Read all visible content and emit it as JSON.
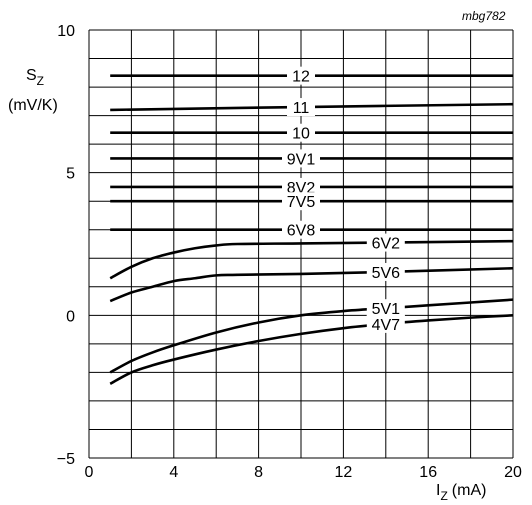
{
  "chart_data": {
    "type": "line",
    "reference": "mbg782",
    "ylabel": "S",
    "ylabel_sub": "Z",
    "yunit": "(mV/K)",
    "xlabel": "I",
    "xlabel_sub": "Z",
    "xunit": "(mA)",
    "xlim": [
      0,
      20
    ],
    "ylim": [
      -5,
      10
    ],
    "x_minor_step": 2,
    "y_minor_step": 1,
    "xticks": [
      0,
      4,
      8,
      12,
      16,
      20
    ],
    "yticks": [
      -5,
      0,
      5,
      10
    ],
    "grid": true,
    "series": [
      {
        "name": "12",
        "label_x": 10,
        "points": [
          [
            1,
            8.4
          ],
          [
            20,
            8.4
          ]
        ]
      },
      {
        "name": "11",
        "label_x": 10,
        "points": [
          [
            1,
            7.2
          ],
          [
            10,
            7.3
          ],
          [
            20,
            7.4
          ]
        ]
      },
      {
        "name": "10",
        "label_x": 10,
        "points": [
          [
            1,
            6.4
          ],
          [
            20,
            6.4
          ]
        ]
      },
      {
        "name": "9V1",
        "label_x": 10,
        "points": [
          [
            1,
            5.5
          ],
          [
            20,
            5.5
          ]
        ]
      },
      {
        "name": "8V2",
        "label_x": 10,
        "points": [
          [
            1,
            4.5
          ],
          [
            20,
            4.5
          ]
        ]
      },
      {
        "name": "7V5",
        "label_x": 10,
        "points": [
          [
            1,
            4.0
          ],
          [
            20,
            4.0
          ]
        ]
      },
      {
        "name": "6V8",
        "label_x": 10,
        "points": [
          [
            1,
            3.0
          ],
          [
            20,
            3.0
          ]
        ]
      },
      {
        "name": "6V2",
        "label_x": 14,
        "points": [
          [
            1,
            1.3
          ],
          [
            2,
            1.7
          ],
          [
            3,
            2.0
          ],
          [
            4,
            2.2
          ],
          [
            5,
            2.35
          ],
          [
            6,
            2.45
          ],
          [
            7,
            2.5
          ],
          [
            10,
            2.52
          ],
          [
            14,
            2.55
          ],
          [
            20,
            2.6
          ]
        ]
      },
      {
        "name": "5V6",
        "label_x": 14,
        "points": [
          [
            1,
            0.5
          ],
          [
            2,
            0.8
          ],
          [
            3,
            1.0
          ],
          [
            4,
            1.2
          ],
          [
            5,
            1.3
          ],
          [
            6,
            1.4
          ],
          [
            7,
            1.42
          ],
          [
            10,
            1.45
          ],
          [
            14,
            1.52
          ],
          [
            20,
            1.65
          ]
        ]
      },
      {
        "name": "5V1",
        "label_x": 14,
        "points": [
          [
            1,
            -2.0
          ],
          [
            2,
            -1.6
          ],
          [
            3,
            -1.3
          ],
          [
            4,
            -1.05
          ],
          [
            6,
            -0.6
          ],
          [
            8,
            -0.25
          ],
          [
            10,
            0.0
          ],
          [
            12,
            0.15
          ],
          [
            14,
            0.25
          ],
          [
            16,
            0.35
          ],
          [
            18,
            0.45
          ],
          [
            20,
            0.55
          ]
        ]
      },
      {
        "name": "4V7",
        "label_x": 14,
        "points": [
          [
            1,
            -2.4
          ],
          [
            2,
            -2.0
          ],
          [
            3,
            -1.75
          ],
          [
            4,
            -1.55
          ],
          [
            6,
            -1.2
          ],
          [
            8,
            -0.9
          ],
          [
            10,
            -0.65
          ],
          [
            12,
            -0.45
          ],
          [
            14,
            -0.3
          ],
          [
            16,
            -0.18
          ],
          [
            18,
            -0.08
          ],
          [
            20,
            0.0
          ]
        ]
      }
    ]
  }
}
